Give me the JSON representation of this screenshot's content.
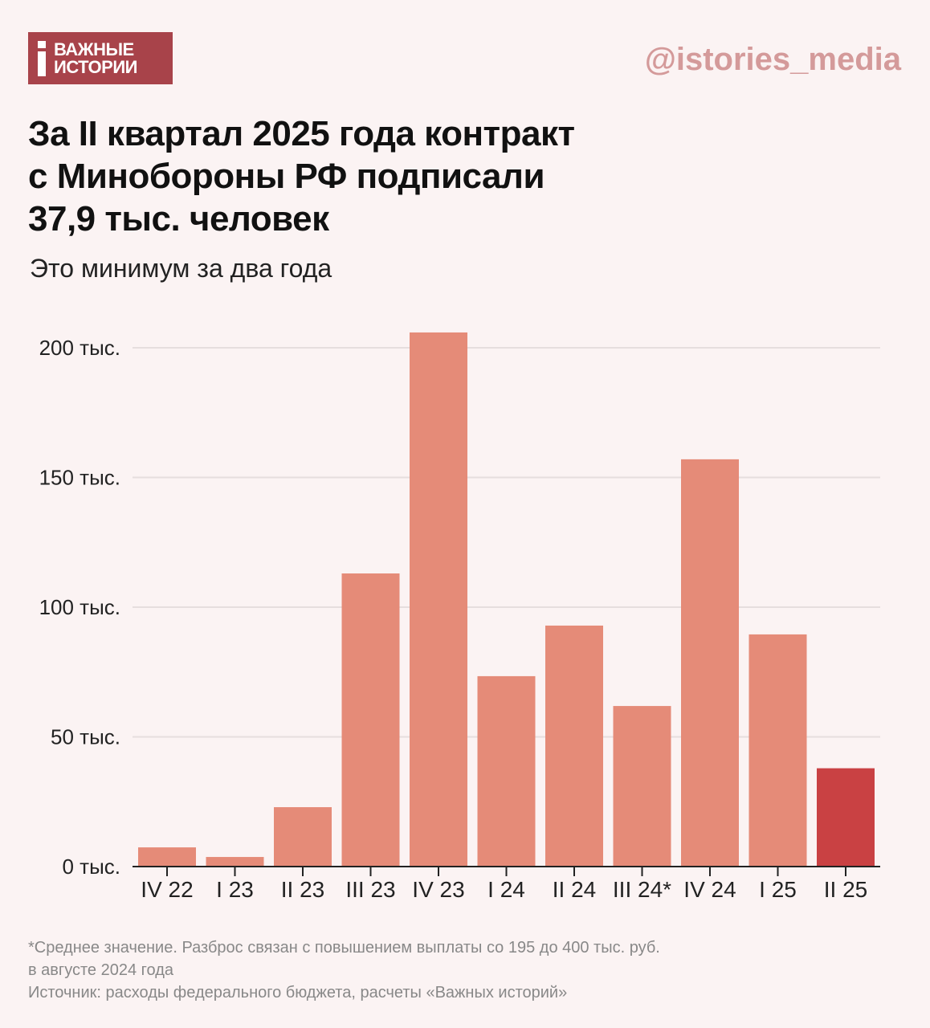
{
  "logo": {
    "line1": "ВАЖНЫЕ",
    "line2": "ИСТОРИИ"
  },
  "handle": "@istories_media",
  "title": [
    "За II квартал 2025 года контракт",
    "с Минобороны РФ подписали",
    "37,9 тыс. человек"
  ],
  "subtitle": "Это минимум за два года",
  "colors": {
    "background": "#fbf3f3",
    "bar": "#e58b78",
    "highlight": "#c94143",
    "logo": "#a8434a"
  },
  "chart_data": {
    "type": "bar",
    "categories": [
      "IV 22",
      "I 23",
      "II 23",
      "III 23",
      "IV 23",
      "I 24",
      "II 24",
      "III 24*",
      "IV 24",
      "I 25",
      "II 25"
    ],
    "values": [
      7.4,
      3.7,
      22.9,
      113,
      205.9,
      73.4,
      92.9,
      61.9,
      157,
      89.5,
      37.9
    ],
    "unit": "тыс.",
    "highlight_index": 10,
    "ylim": [
      0,
      200
    ],
    "yticks": [
      0,
      50,
      100,
      150,
      200
    ],
    "ytick_labels": [
      "0 тыс.",
      "50 тыс.",
      "100 тыс.",
      "150 тыс.",
      "200 тыс."
    ],
    "grid": true
  },
  "notes": [
    "*Среднее значение. Разброс связан с повышением выплаты со 195 до 400 тыс. руб.",
    "в августе 2024 года",
    "Источник: расходы федерального бюджета, расчеты «Важных историй»"
  ]
}
